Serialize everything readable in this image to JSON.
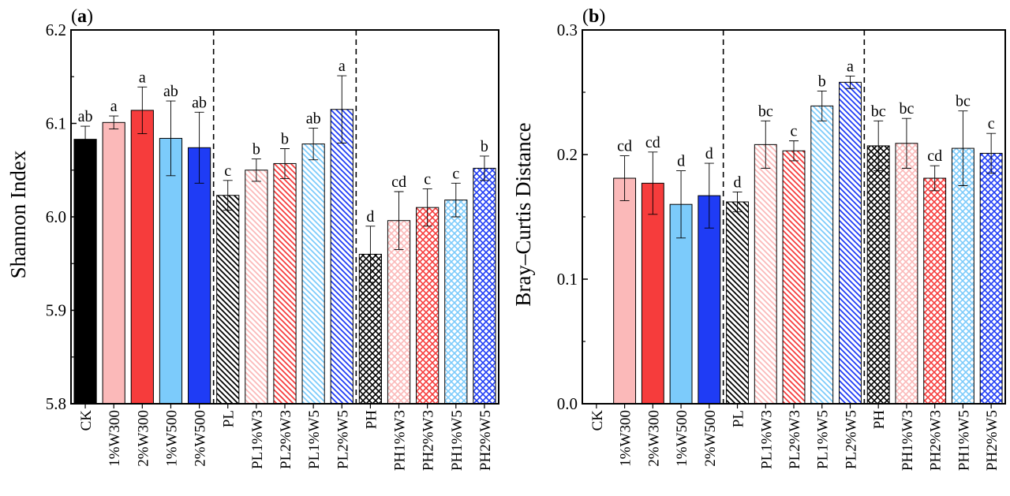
{
  "charts": [
    {
      "panel": "a",
      "ylabel": "Shannon Index",
      "yticks": [
        "5.8",
        "5.9",
        "6.0",
        "6.1",
        "6.2"
      ]
    },
    {
      "panel": "b",
      "ylabel": "Bray–Curtis Distance",
      "yticks": [
        "0.0",
        "0.1",
        "0.2",
        "0.3"
      ]
    }
  ],
  "colors": {
    "black": "#000000",
    "pink": "#fbb9b9",
    "red": "#f63c3c",
    "lightblue": "#7ccbfb",
    "blue": "#1f3cf5"
  },
  "chart_data": [
    {
      "type": "bar",
      "title": "",
      "panel_label": "a",
      "xlabel": "",
      "ylabel": "Shannon Index",
      "ylim": [
        5.8,
        6.2
      ],
      "yticks": [
        5.8,
        5.9,
        6.0,
        6.1,
        6.2
      ],
      "categories": [
        "CK",
        "1%W300",
        "2%W300",
        "1%W500",
        "2%W500",
        "PL",
        "PL1%W3",
        "PL2%W3",
        "PL1%W5",
        "PL2%W5",
        "PH",
        "PH1%W3",
        "PH2%W3",
        "PH1%W5",
        "PH2%W5"
      ],
      "values": [
        6.083,
        6.101,
        6.114,
        6.084,
        6.074,
        6.023,
        6.05,
        6.057,
        6.078,
        6.115,
        5.96,
        5.996,
        6.01,
        6.018,
        6.052
      ],
      "errors": [
        0.014,
        0.007,
        0.025,
        0.04,
        0.038,
        0.016,
        0.012,
        0.016,
        0.017,
        0.036,
        0.03,
        0.031,
        0.02,
        0.018,
        0.013
      ],
      "labels": [
        "ab",
        "a",
        "a",
        "ab",
        "ab",
        "c",
        "b",
        "b",
        "ab",
        "a",
        "d",
        "cd",
        "c",
        "c",
        "b"
      ],
      "colors": [
        "black",
        "pink",
        "red",
        "lightblue",
        "blue",
        "black",
        "pink",
        "red",
        "lightblue",
        "blue",
        "black",
        "pink",
        "red",
        "lightblue",
        "blue"
      ],
      "patterns": [
        "solid",
        "solid",
        "solid",
        "solid",
        "solid",
        "diag",
        "diag",
        "diag",
        "diag",
        "diag",
        "cross",
        "cross",
        "cross",
        "cross",
        "cross"
      ],
      "group_separators_after": [
        "2%W500",
        "PL2%W5"
      ]
    },
    {
      "type": "bar",
      "title": "",
      "panel_label": "b",
      "xlabel": "",
      "ylabel": "Bray–Curtis Distance",
      "ylim": [
        0.0,
        0.3
      ],
      "yticks": [
        0.0,
        0.1,
        0.2,
        0.3
      ],
      "categories": [
        "CK",
        "1%W300",
        "2%W300",
        "1%W500",
        "2%W500",
        "PL",
        "PL1%W3",
        "PL2%W3",
        "PL1%W5",
        "PL2%W5",
        "PH",
        "PH1%W3",
        "PH2%W3",
        "PH1%W5",
        "PH2%W5"
      ],
      "values": [
        null,
        0.181,
        0.177,
        0.16,
        0.167,
        0.162,
        0.208,
        0.203,
        0.239,
        0.258,
        0.207,
        0.209,
        0.181,
        0.205,
        0.201
      ],
      "errors": [
        null,
        0.018,
        0.025,
        0.027,
        0.026,
        0.008,
        0.019,
        0.008,
        0.012,
        0.005,
        0.02,
        0.02,
        0.01,
        0.03,
        0.016
      ],
      "labels": [
        "",
        "cd",
        "cd",
        "d",
        "d",
        "d",
        "bc",
        "c",
        "b",
        "a",
        "bc",
        "bc",
        "cd",
        "bc",
        "c"
      ],
      "colors": [
        "black",
        "pink",
        "red",
        "lightblue",
        "blue",
        "black",
        "pink",
        "red",
        "lightblue",
        "blue",
        "black",
        "pink",
        "red",
        "lightblue",
        "blue"
      ],
      "patterns": [
        "solid",
        "solid",
        "solid",
        "solid",
        "solid",
        "diag",
        "diag",
        "diag",
        "diag",
        "diag",
        "cross",
        "cross",
        "cross",
        "cross",
        "cross"
      ],
      "group_separators_after": [
        "2%W500",
        "PL2%W5"
      ]
    }
  ]
}
